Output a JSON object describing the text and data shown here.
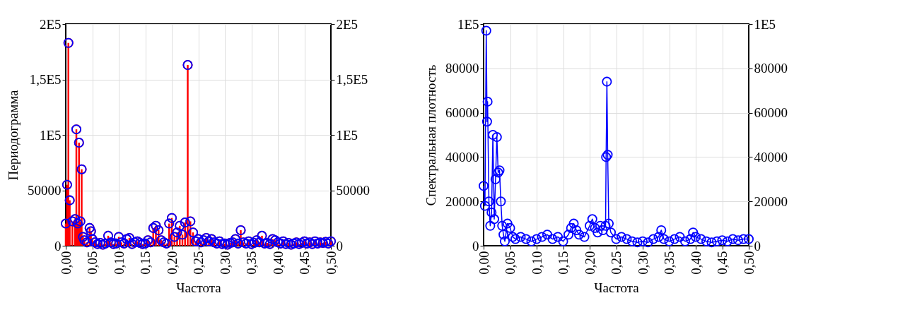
{
  "chart_data": [
    {
      "type": "lollipop",
      "xlabel": "Частота",
      "ylabel": "Периодограмма",
      "grid": true,
      "marker": "circle",
      "xlim": [
        0,
        0.5
      ],
      "xticks": [
        {
          "value": 0,
          "label": "0,00"
        },
        {
          "value": 0.05,
          "label": "0,05"
        },
        {
          "value": 0.1,
          "label": "0,10"
        },
        {
          "value": 0.15,
          "label": "0,15"
        },
        {
          "value": 0.2,
          "label": "0,20"
        },
        {
          "value": 0.25,
          "label": "0,25"
        },
        {
          "value": 0.3,
          "label": "0,30"
        },
        {
          "value": 0.35,
          "label": "0,35"
        },
        {
          "value": 0.4,
          "label": "0,40"
        },
        {
          "value": 0.45,
          "label": "0,45"
        },
        {
          "value": 0.5,
          "label": "0,50"
        }
      ],
      "ylim": [
        0,
        200000
      ],
      "yticks": [
        0,
        50000,
        {
          "value": 100000,
          "label": "1E5"
        },
        {
          "value": 150000,
          "label": "1,5E5"
        },
        {
          "value": 200000,
          "label": "2E5"
        }
      ],
      "y2lim": [
        0,
        200000
      ],
      "y2ticks": [
        0,
        50000,
        {
          "value": 100000,
          "label": "1E5"
        },
        {
          "value": 150000,
          "label": "1,5E5"
        },
        {
          "value": 200000,
          "label": "2E5"
        }
      ],
      "x": [
        0,
        0.0025,
        0.005,
        0.0075,
        0.0125,
        0.0175,
        0.02,
        0.0225,
        0.025,
        0.0275,
        0.03,
        0.0325,
        0.035,
        0.04,
        0.045,
        0.0475,
        0.05,
        0.055,
        0.06,
        0.065,
        0.07,
        0.075,
        0.08,
        0.085,
        0.09,
        0.095,
        0.1,
        0.105,
        0.11,
        0.115,
        0.12,
        0.125,
        0.13,
        0.135,
        0.14,
        0.145,
        0.15,
        0.155,
        0.16,
        0.165,
        0.17,
        0.175,
        0.18,
        0.185,
        0.19,
        0.195,
        0.2,
        0.205,
        0.21,
        0.215,
        0.22,
        0.225,
        0.23,
        0.235,
        0.24,
        0.245,
        0.25,
        0.255,
        0.26,
        0.265,
        0.27,
        0.275,
        0.28,
        0.285,
        0.29,
        0.295,
        0.3,
        0.305,
        0.31,
        0.315,
        0.32,
        0.325,
        0.33,
        0.335,
        0.34,
        0.345,
        0.35,
        0.355,
        0.36,
        0.365,
        0.37,
        0.375,
        0.38,
        0.385,
        0.39,
        0.395,
        0.4,
        0.405,
        0.41,
        0.415,
        0.42,
        0.425,
        0.43,
        0.435,
        0.44,
        0.445,
        0.45,
        0.455,
        0.46,
        0.465,
        0.47,
        0.475,
        0.48,
        0.485,
        0.49,
        0.495,
        0.5
      ],
      "series": [
        {
          "color": "#ff0000",
          "values": [
            20000,
            55000,
            183000,
            41000,
            22000,
            24000,
            105000,
            20000,
            93000,
            22000,
            69000,
            8000,
            5000,
            3000,
            16000,
            13000,
            6000,
            3000,
            1500,
            2500,
            1000,
            2000,
            9000,
            3000,
            1500,
            2000,
            8000,
            3000,
            2000,
            6000,
            7000,
            1500,
            3000,
            4000,
            2500,
            1500,
            2000,
            5000,
            3000,
            16000,
            18000,
            14000,
            5000,
            3000,
            2000,
            20000,
            25000,
            8000,
            12000,
            18000,
            10000,
            21000,
            163000,
            22000,
            12000,
            4000,
            6000,
            3000,
            5000,
            7000,
            4000,
            6000,
            3000,
            2000,
            4000,
            1500,
            2000,
            1000,
            2500,
            3000,
            6000,
            2000,
            14000,
            3000,
            2000,
            4000,
            1500,
            2500,
            5000,
            3000,
            9000,
            2000,
            2500,
            1500,
            6000,
            5000,
            3000,
            2000,
            4000,
            1500,
            2500,
            1000,
            2000,
            3000,
            1500,
            2500,
            4000,
            2000,
            3000,
            1500,
            4000,
            2000,
            3000,
            2500,
            3500,
            2000,
            4000
          ]
        },
        {
          "type": "scatter",
          "color": "#0000ff",
          "values": [
            20000,
            55000,
            183000,
            41000,
            22000,
            24000,
            105000,
            20000,
            93000,
            22000,
            69000,
            8000,
            5000,
            3000,
            16000,
            13000,
            6000,
            3000,
            1500,
            2500,
            1000,
            2000,
            9000,
            3000,
            1500,
            2000,
            8000,
            3000,
            2000,
            6000,
            7000,
            1500,
            3000,
            4000,
            2500,
            1500,
            2000,
            5000,
            3000,
            16000,
            18000,
            14000,
            5000,
            3000,
            2000,
            20000,
            25000,
            8000,
            12000,
            18000,
            10000,
            21000,
            163000,
            22000,
            12000,
            4000,
            6000,
            3000,
            5000,
            7000,
            4000,
            6000,
            3000,
            2000,
            4000,
            1500,
            2000,
            1000,
            2500,
            3000,
            6000,
            2000,
            14000,
            3000,
            2000,
            4000,
            1500,
            2500,
            5000,
            3000,
            9000,
            2000,
            2500,
            1500,
            6000,
            5000,
            3000,
            2000,
            4000,
            1500,
            2500,
            1000,
            2000,
            3000,
            1500,
            2500,
            4000,
            2000,
            3000,
            1500,
            4000,
            2000,
            3000,
            2500,
            3500,
            2000,
            4000
          ]
        }
      ]
    },
    {
      "type": "line",
      "xlabel": "Частота",
      "ylabel": "Спектральная плотность",
      "grid": true,
      "marker": "circle",
      "line_style": "solid",
      "xlim": [
        0,
        0.5
      ],
      "xticks": [
        {
          "value": 0,
          "label": "0,00"
        },
        {
          "value": 0.05,
          "label": "0,05"
        },
        {
          "value": 0.1,
          "label": "0,10"
        },
        {
          "value": 0.15,
          "label": "0,15"
        },
        {
          "value": 0.2,
          "label": "0,20"
        },
        {
          "value": 0.25,
          "label": "0,25"
        },
        {
          "value": 0.3,
          "label": "0,30"
        },
        {
          "value": 0.35,
          "label": "0,35"
        },
        {
          "value": 0.4,
          "label": "0,40"
        },
        {
          "value": 0.45,
          "label": "0,45"
        },
        {
          "value": 0.5,
          "label": "0,50"
        }
      ],
      "ylim": [
        0,
        100000
      ],
      "yticks": [
        0,
        20000,
        40000,
        60000,
        80000,
        {
          "value": 100000,
          "label": "1E5"
        }
      ],
      "y2lim": [
        0,
        100000
      ],
      "y2ticks": [
        0,
        20000,
        40000,
        60000,
        80000,
        {
          "value": 100000,
          "label": "1E5"
        }
      ],
      "x": [
        0,
        0.0025,
        0.005,
        0.0065,
        0.0075,
        0.01,
        0.0125,
        0.015,
        0.0175,
        0.02,
        0.0225,
        0.025,
        0.0275,
        0.03,
        0.0325,
        0.035,
        0.0375,
        0.04,
        0.045,
        0.05,
        0.055,
        0.06,
        0.07,
        0.08,
        0.09,
        0.1,
        0.11,
        0.12,
        0.13,
        0.14,
        0.15,
        0.16,
        0.165,
        0.17,
        0.175,
        0.18,
        0.19,
        0.2,
        0.205,
        0.21,
        0.215,
        0.22,
        0.225,
        0.23,
        0.231,
        0.2325,
        0.234,
        0.236,
        0.24,
        0.25,
        0.26,
        0.27,
        0.28,
        0.29,
        0.3,
        0.31,
        0.32,
        0.33,
        0.335,
        0.34,
        0.35,
        0.36,
        0.37,
        0.38,
        0.39,
        0.395,
        0.4,
        0.41,
        0.42,
        0.43,
        0.44,
        0.45,
        0.46,
        0.47,
        0.48,
        0.49,
        0.5
      ],
      "series": [
        {
          "color": "#0000ff",
          "values": [
            27000,
            18000,
            97000,
            56000,
            65000,
            20000,
            9000,
            15000,
            50000,
            12000,
            30000,
            49000,
            33000,
            34000,
            20000,
            9000,
            5000,
            2000,
            10000,
            8000,
            4000,
            3000,
            4000,
            3000,
            2000,
            3000,
            4000,
            5000,
            3000,
            4000,
            2000,
            5000,
            8000,
            10000,
            7000,
            5000,
            4000,
            9000,
            12000,
            8000,
            6000,
            9000,
            7000,
            9000,
            40000,
            74000,
            41000,
            10000,
            6000,
            3000,
            4000,
            3000,
            2000,
            1500,
            2000,
            1500,
            3000,
            4000,
            7000,
            3000,
            2000,
            3000,
            4000,
            2000,
            3000,
            6000,
            4000,
            3000,
            2000,
            1500,
            2000,
            2500,
            2000,
            3000,
            2500,
            3000,
            3000
          ]
        }
      ]
    }
  ]
}
